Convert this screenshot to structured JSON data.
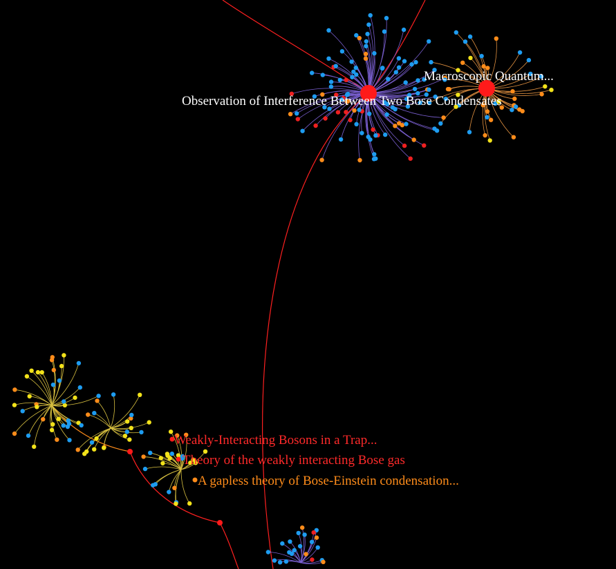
{
  "labels": {
    "interference": "Observation of Interference Between Two Bose Condensates",
    "macroscopic": "Macroscopic Quantum...",
    "weakly_trap": "Weakly-Interacting Bosons in a Trap...",
    "weakly_gas": "Theory of the weakly interacting Bose gas",
    "gapless": "A gapless theory of Bose-Einstein condensation..."
  },
  "colors": {
    "background": "#000000",
    "hub": "#ff1a1a",
    "label_white": "#ffffff",
    "label_red": "#ff2a2a",
    "label_orange": "#ff8c1a",
    "node_blue": "#1e9cf0",
    "node_red": "#ee2020",
    "node_orange": "#ff8c1a",
    "node_yellow": "#f2e21a"
  }
}
